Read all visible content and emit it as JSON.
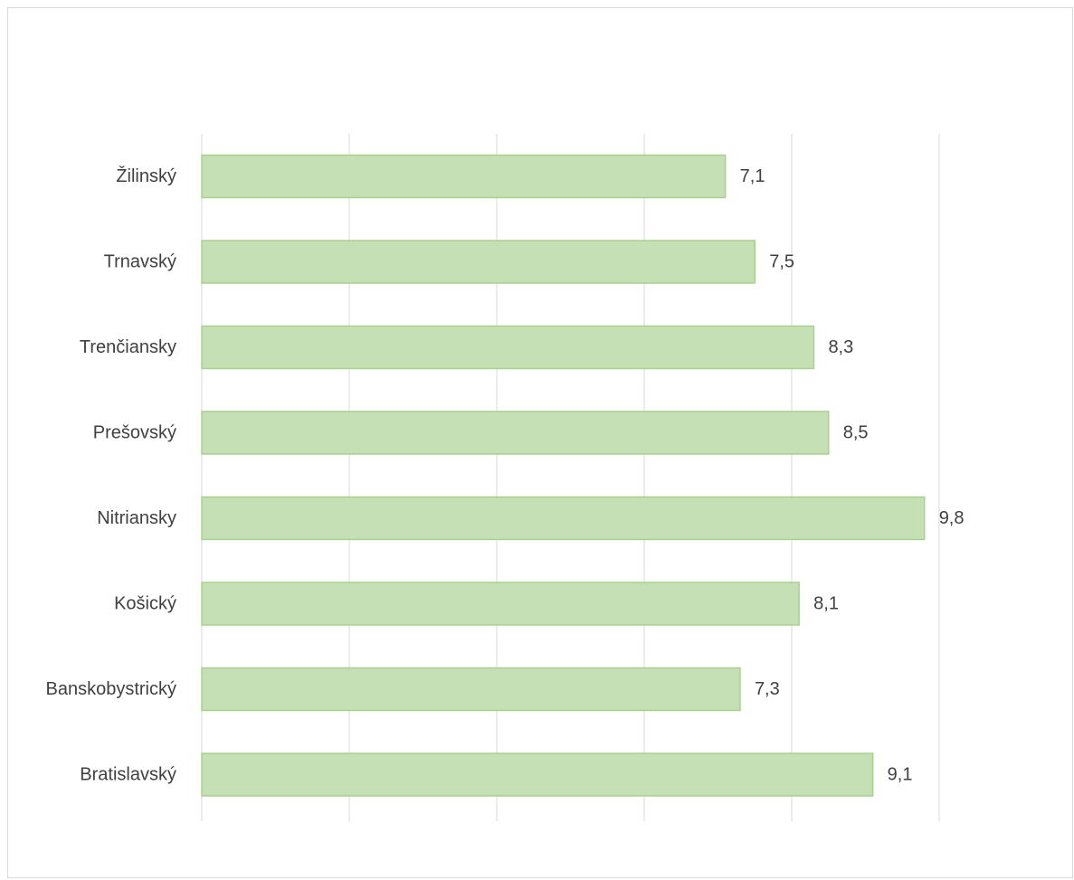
{
  "chart_data": {
    "type": "bar",
    "orientation": "horizontal",
    "categories": [
      "Žilinský",
      "Trnavský",
      "Trenčiansky",
      "Prešovský",
      "Nitriansky",
      "Košický",
      "Banskobystrický",
      "Bratislavský"
    ],
    "values": [
      7.1,
      7.5,
      8.3,
      8.5,
      9.8,
      8.1,
      7.3,
      9.1
    ],
    "value_labels": [
      "7,1",
      "7,5",
      "8,3",
      "8,5",
      "9,8",
      "8,1",
      "7,3",
      "9,1"
    ],
    "title": "",
    "xlabel": "",
    "ylabel": "",
    "xlim": [
      0,
      10
    ],
    "grid": "vertical",
    "legend": "none",
    "colors": {
      "bar_fill": "#c5e0b4",
      "bar_border": "#a9d18e",
      "grid": "#d9d9d9",
      "text": "#404040",
      "frame": "#d9d9d9"
    }
  }
}
